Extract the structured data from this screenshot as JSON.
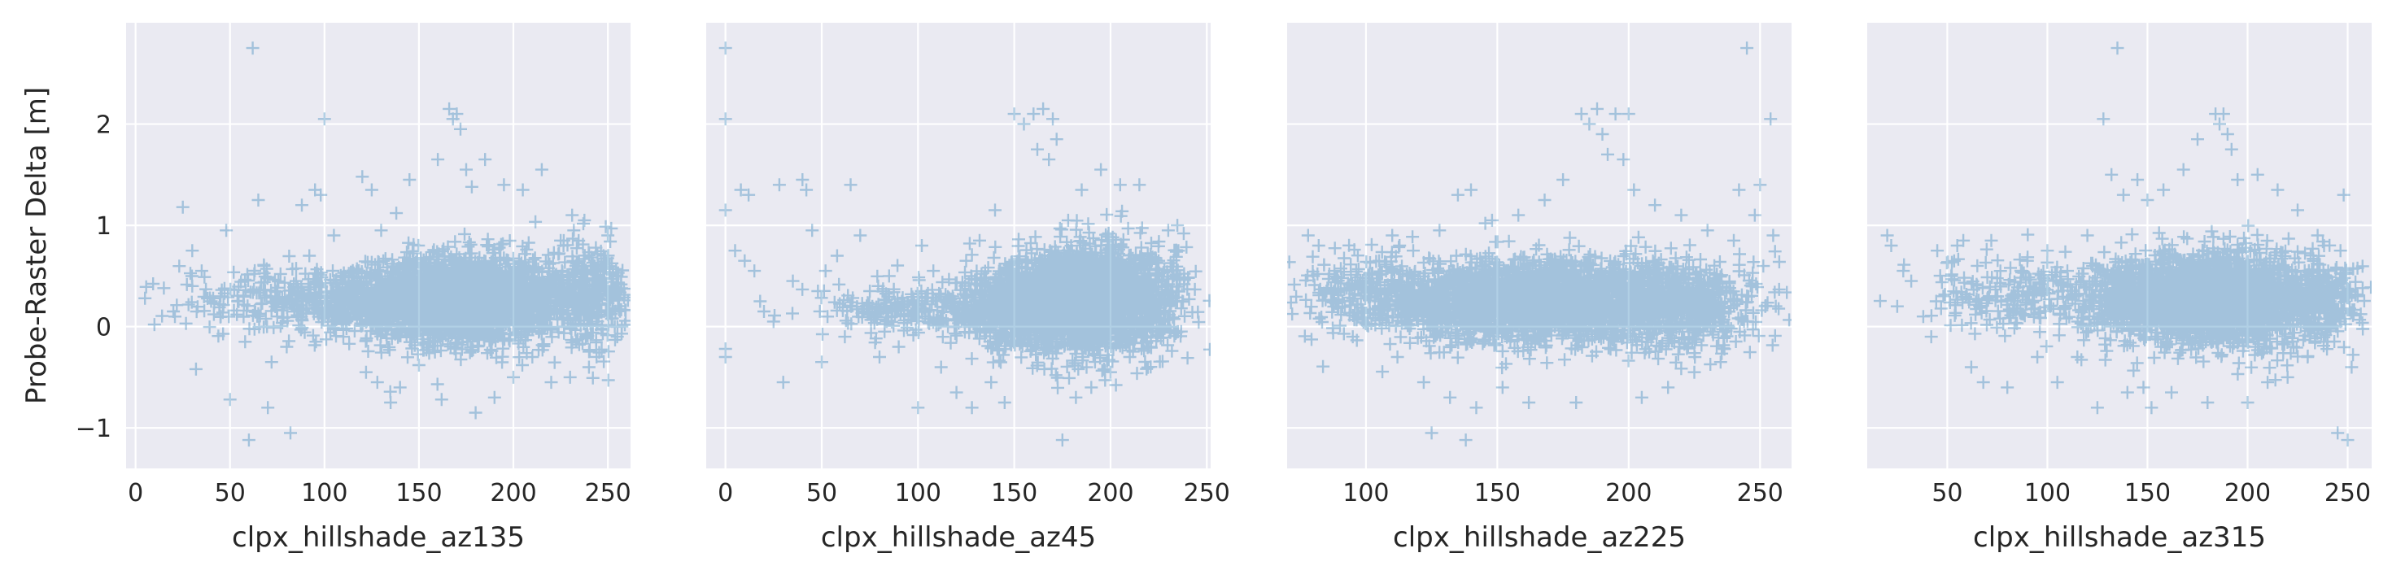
{
  "figure": {
    "ylabel": "Probe-Raster Delta [m]"
  },
  "chart_data": [
    {
      "type": "scatter",
      "marker": "plus",
      "color": "#1f77b4",
      "xlabel": "clpx_hillshade_az135",
      "ylabel": "Probe-Raster Delta [m]",
      "xlim": [
        -5,
        262
      ],
      "ylim": [
        -1.4,
        3.0
      ],
      "xticks": [
        0,
        50,
        100,
        150,
        200,
        250
      ],
      "yticks": [
        -1,
        0,
        1,
        2
      ],
      "grid": true,
      "points": [
        [
          5,
          0.28
        ],
        [
          10,
          0.02
        ],
        [
          15,
          0.38
        ],
        [
          20,
          0.15
        ],
        [
          25,
          1.18
        ],
        [
          30,
          0.75
        ],
        [
          30,
          0.4
        ],
        [
          32,
          -0.42
        ],
        [
          35,
          0.55
        ],
        [
          40,
          0.25
        ],
        [
          45,
          0.3
        ],
        [
          48,
          0.95
        ],
        [
          50,
          -0.72
        ],
        [
          58,
          -0.15
        ],
        [
          60,
          -1.12
        ],
        [
          62,
          2.75
        ],
        [
          65,
          1.25
        ],
        [
          68,
          0.6
        ],
        [
          70,
          -0.8
        ],
        [
          72,
          -0.35
        ],
        [
          75,
          0.1
        ],
        [
          80,
          -0.2
        ],
        [
          82,
          -1.05
        ],
        [
          85,
          0.45
        ],
        [
          88,
          1.2
        ],
        [
          92,
          0.7
        ],
        [
          95,
          1.35
        ],
        [
          98,
          1.3
        ],
        [
          100,
          2.05
        ],
        [
          105,
          0.9
        ],
        [
          110,
          -0.1
        ],
        [
          115,
          0.4
        ],
        [
          120,
          1.48
        ],
        [
          122,
          -0.45
        ],
        [
          125,
          1.35
        ],
        [
          128,
          -0.55
        ],
        [
          130,
          0.95
        ],
        [
          135,
          -0.75
        ],
        [
          138,
          1.12
        ],
        [
          140,
          -0.6
        ],
        [
          145,
          1.45
        ],
        [
          150,
          -0.38
        ],
        [
          160,
          1.65
        ],
        [
          162,
          -0.72
        ],
        [
          166,
          2.15
        ],
        [
          168,
          2.05
        ],
        [
          170,
          2.1
        ],
        [
          172,
          1.95
        ],
        [
          175,
          1.55
        ],
        [
          178,
          1.38
        ],
        [
          180,
          -0.85
        ],
        [
          185,
          1.65
        ],
        [
          190,
          -0.7
        ],
        [
          195,
          1.4
        ],
        [
          200,
          -0.5
        ],
        [
          205,
          1.35
        ],
        [
          210,
          -0.3
        ],
        [
          215,
          1.55
        ],
        [
          220,
          -0.55
        ],
        [
          225,
          0.85
        ],
        [
          230,
          -0.5
        ],
        [
          232,
          0.95
        ],
        [
          240,
          -0.4
        ],
        [
          245,
          0.6
        ],
        [
          250,
          0.9
        ],
        [
          252,
          0.3
        ],
        [
          255,
          -0.1
        ]
      ],
      "clusters": [
        {
          "cx": 172,
          "cy": 0.28,
          "sx": 24,
          "sy": 0.22,
          "n": 1800
        },
        {
          "cx": 200,
          "cy": 0.22,
          "sx": 35,
          "sy": 0.18,
          "n": 700
        },
        {
          "cx": 120,
          "cy": 0.25,
          "sx": 30,
          "sy": 0.15,
          "n": 450
        },
        {
          "cx": 72,
          "cy": 0.25,
          "sx": 25,
          "sy": 0.15,
          "n": 150
        },
        {
          "cx": 240,
          "cy": 0.35,
          "sx": 10,
          "sy": 0.25,
          "n": 250
        }
      ]
    },
    {
      "type": "scatter",
      "marker": "plus",
      "color": "#1f77b4",
      "xlabel": "clpx_hillshade_az45",
      "ylabel": "",
      "xlim": [
        -10,
        252
      ],
      "ylim": [
        -1.4,
        3.0
      ],
      "xticks": [
        0,
        50,
        100,
        150,
        200,
        250
      ],
      "yticks": [
        -1,
        0,
        1,
        2
      ],
      "grid": true,
      "points": [
        [
          0,
          2.75
        ],
        [
          0,
          2.05
        ],
        [
          0,
          1.15
        ],
        [
          0,
          -0.22
        ],
        [
          0,
          -0.3
        ],
        [
          5,
          0.75
        ],
        [
          8,
          1.35
        ],
        [
          10,
          0.65
        ],
        [
          12,
          1.3
        ],
        [
          15,
          0.55
        ],
        [
          18,
          0.25
        ],
        [
          20,
          0.15
        ],
        [
          25,
          0.05
        ],
        [
          28,
          1.4
        ],
        [
          30,
          -0.55
        ],
        [
          35,
          0.45
        ],
        [
          40,
          1.45
        ],
        [
          42,
          1.35
        ],
        [
          45,
          0.95
        ],
        [
          48,
          0.35
        ],
        [
          50,
          -0.35
        ],
        [
          52,
          0.55
        ],
        [
          58,
          0.7
        ],
        [
          62,
          -0.1
        ],
        [
          65,
          1.4
        ],
        [
          70,
          0.9
        ],
        [
          75,
          0.35
        ],
        [
          80,
          -0.3
        ],
        [
          85,
          0.5
        ],
        [
          90,
          -0.2
        ],
        [
          95,
          0.1
        ],
        [
          100,
          -0.8
        ],
        [
          102,
          0.8
        ],
        [
          108,
          0.55
        ],
        [
          112,
          -0.4
        ],
        [
          118,
          0.3
        ],
        [
          120,
          -0.65
        ],
        [
          125,
          0.65
        ],
        [
          128,
          -0.8
        ],
        [
          132,
          0.85
        ],
        [
          138,
          -0.55
        ],
        [
          140,
          1.15
        ],
        [
          145,
          -0.75
        ],
        [
          150,
          2.1
        ],
        [
          155,
          2.0
        ],
        [
          160,
          2.1
        ],
        [
          162,
          1.75
        ],
        [
          165,
          2.15
        ],
        [
          168,
          1.65
        ],
        [
          170,
          2.05
        ],
        [
          172,
          1.85
        ],
        [
          175,
          -1.12
        ],
        [
          178,
          1.05
        ],
        [
          182,
          -0.7
        ],
        [
          185,
          1.35
        ],
        [
          190,
          -0.6
        ],
        [
          195,
          1.55
        ],
        [
          200,
          -0.45
        ],
        [
          205,
          1.4
        ],
        [
          210,
          -0.3
        ],
        [
          215,
          1.4
        ],
        [
          220,
          -0.2
        ],
        [
          225,
          0.65
        ],
        [
          230,
          0.95
        ],
        [
          232,
          0.35
        ],
        [
          235,
          -0.05
        ],
        [
          238,
          0.92
        ]
      ],
      "clusters": [
        {
          "cx": 185,
          "cy": 0.28,
          "sx": 18,
          "sy": 0.25,
          "n": 2200
        },
        {
          "cx": 150,
          "cy": 0.2,
          "sx": 15,
          "sy": 0.2,
          "n": 500
        },
        {
          "cx": 100,
          "cy": 0.15,
          "sx": 25,
          "sy": 0.12,
          "n": 250
        },
        {
          "cx": 220,
          "cy": 0.3,
          "sx": 12,
          "sy": 0.25,
          "n": 300
        }
      ]
    },
    {
      "type": "scatter",
      "marker": "plus",
      "color": "#1f77b4",
      "xlabel": "clpx_hillshade_az225",
      "ylabel": "",
      "xlim": [
        70,
        262
      ],
      "ylim": [
        -1.4,
        3.0
      ],
      "xticks": [
        100,
        150,
        200,
        250
      ],
      "yticks": [
        -1,
        0,
        1,
        2
      ],
      "grid": true,
      "points": [
        [
          78,
          0.9
        ],
        [
          80,
          0.5
        ],
        [
          82,
          0.8
        ],
        [
          85,
          0.35
        ],
        [
          88,
          0.55
        ],
        [
          92,
          0.2
        ],
        [
          95,
          -0.1
        ],
        [
          100,
          0.45
        ],
        [
          105,
          0.65
        ],
        [
          110,
          0.9
        ],
        [
          112,
          -0.3
        ],
        [
          118,
          0.75
        ],
        [
          122,
          -0.55
        ],
        [
          125,
          -1.05
        ],
        [
          128,
          0.95
        ],
        [
          132,
          -0.7
        ],
        [
          135,
          1.3
        ],
        [
          138,
          -1.12
        ],
        [
          140,
          1.35
        ],
        [
          142,
          -0.8
        ],
        [
          148,
          1.05
        ],
        [
          152,
          -0.6
        ],
        [
          158,
          1.1
        ],
        [
          162,
          -0.75
        ],
        [
          168,
          1.25
        ],
        [
          175,
          1.45
        ],
        [
          180,
          -0.75
        ],
        [
          182,
          2.1
        ],
        [
          185,
          2.0
        ],
        [
          188,
          2.15
        ],
        [
          190,
          1.9
        ],
        [
          192,
          1.7
        ],
        [
          195,
          2.1
        ],
        [
          198,
          1.65
        ],
        [
          200,
          2.1
        ],
        [
          202,
          1.35
        ],
        [
          205,
          -0.7
        ],
        [
          210,
          1.2
        ],
        [
          215,
          -0.6
        ],
        [
          220,
          1.1
        ],
        [
          225,
          -0.45
        ],
        [
          230,
          0.95
        ],
        [
          235,
          -0.35
        ],
        [
          240,
          0.85
        ],
        [
          242,
          1.35
        ],
        [
          245,
          2.75
        ],
        [
          248,
          1.1
        ],
        [
          250,
          1.4
        ],
        [
          252,
          0.2
        ],
        [
          254,
          2.05
        ],
        [
          255,
          0.9
        ]
      ],
      "clusters": [
        {
          "cx": 178,
          "cy": 0.25,
          "sx": 28,
          "sy": 0.2,
          "n": 2200
        },
        {
          "cx": 135,
          "cy": 0.25,
          "sx": 18,
          "sy": 0.18,
          "n": 600
        },
        {
          "cx": 225,
          "cy": 0.2,
          "sx": 12,
          "sy": 0.2,
          "n": 350
        },
        {
          "cx": 100,
          "cy": 0.35,
          "sx": 15,
          "sy": 0.2,
          "n": 200
        }
      ]
    },
    {
      "type": "scatter",
      "marker": "plus",
      "color": "#1f77b4",
      "xlabel": "clpx_hillshade_az315",
      "ylabel": "",
      "xlim": [
        10,
        262
      ],
      "ylim": [
        -1.4,
        3.0
      ],
      "xticks": [
        50,
        100,
        150,
        200,
        250
      ],
      "yticks": [
        -1,
        0,
        1,
        2
      ],
      "grid": true,
      "points": [
        [
          20,
          0.9
        ],
        [
          22,
          0.8
        ],
        [
          25,
          0.2
        ],
        [
          28,
          0.55
        ],
        [
          32,
          0.45
        ],
        [
          38,
          0.1
        ],
        [
          42,
          -0.1
        ],
        [
          45,
          0.75
        ],
        [
          48,
          0.3
        ],
        [
          52,
          0.5
        ],
        [
          55,
          0.8
        ],
        [
          58,
          0.85
        ],
        [
          62,
          -0.4
        ],
        [
          65,
          0.6
        ],
        [
          68,
          -0.55
        ],
        [
          72,
          0.85
        ],
        [
          75,
          0.3
        ],
        [
          80,
          -0.6
        ],
        [
          85,
          0.35
        ],
        [
          90,
          0.65
        ],
        [
          95,
          -0.3
        ],
        [
          100,
          0.75
        ],
        [
          105,
          -0.55
        ],
        [
          110,
          0.55
        ],
        [
          115,
          -0.3
        ],
        [
          120,
          0.9
        ],
        [
          125,
          -0.8
        ],
        [
          128,
          2.05
        ],
        [
          132,
          1.5
        ],
        [
          135,
          2.75
        ],
        [
          138,
          1.3
        ],
        [
          140,
          -0.65
        ],
        [
          145,
          1.45
        ],
        [
          148,
          -0.6
        ],
        [
          150,
          1.25
        ],
        [
          152,
          -0.8
        ],
        [
          158,
          1.35
        ],
        [
          162,
          -0.65
        ],
        [
          168,
          1.55
        ],
        [
          175,
          1.85
        ],
        [
          180,
          -0.75
        ],
        [
          184,
          2.1
        ],
        [
          186,
          2.0
        ],
        [
          188,
          2.1
        ],
        [
          190,
          1.9
        ],
        [
          192,
          1.75
        ],
        [
          195,
          1.45
        ],
        [
          200,
          -0.75
        ],
        [
          205,
          1.5
        ],
        [
          210,
          -0.55
        ],
        [
          215,
          1.35
        ],
        [
          220,
          -0.5
        ],
        [
          225,
          1.15
        ],
        [
          230,
          -0.3
        ],
        [
          235,
          0.9
        ],
        [
          240,
          -0.15
        ],
        [
          245,
          -1.05
        ],
        [
          248,
          1.3
        ],
        [
          250,
          -1.12
        ],
        [
          252,
          -0.4
        ],
        [
          255,
          0.3
        ]
      ],
      "clusters": [
        {
          "cx": 185,
          "cy": 0.28,
          "sx": 22,
          "sy": 0.22,
          "n": 2100
        },
        {
          "cx": 150,
          "cy": 0.25,
          "sx": 18,
          "sy": 0.2,
          "n": 600
        },
        {
          "cx": 235,
          "cy": 0.25,
          "sx": 12,
          "sy": 0.2,
          "n": 350
        },
        {
          "cx": 90,
          "cy": 0.3,
          "sx": 30,
          "sy": 0.18,
          "n": 250
        }
      ]
    }
  ]
}
